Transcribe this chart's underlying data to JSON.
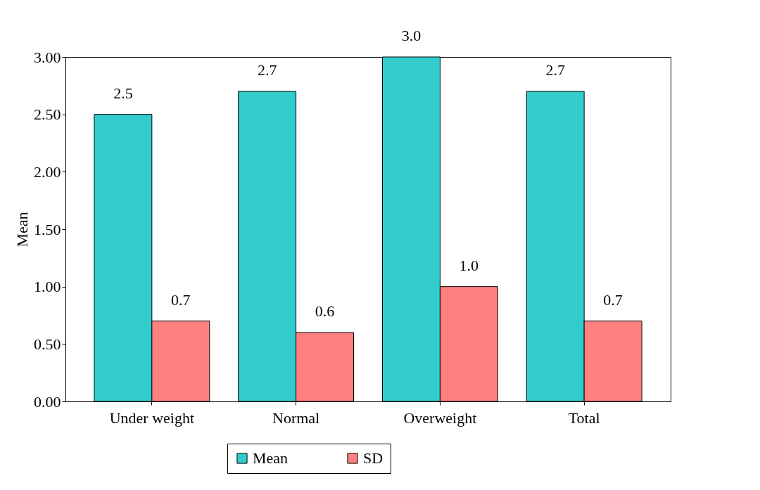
{
  "chart_data": {
    "type": "bar",
    "ylabel": "Mean",
    "categories": [
      "Under weight",
      "Normal",
      "Overweight",
      "Total"
    ],
    "series": [
      {
        "name": "Mean",
        "color": "#33cccc",
        "values": [
          2.5,
          2.7,
          3.0,
          2.7
        ],
        "value_labels": [
          "2.5",
          "2.7",
          "3.0",
          "2.7"
        ]
      },
      {
        "name": "SD",
        "color": "#ff8080",
        "values": [
          0.7,
          0.6,
          1.0,
          0.7
        ],
        "value_labels": [
          "0.7",
          "0.6",
          "1.0",
          "0.7"
        ]
      }
    ],
    "ylim": [
      0,
      3
    ],
    "yticks": [
      {
        "value": 0,
        "label": "0.00"
      },
      {
        "value": 0.5,
        "label": "0.50"
      },
      {
        "value": 1,
        "label": "1.00"
      },
      {
        "value": 1.5,
        "label": "1.50"
      },
      {
        "value": 2,
        "label": "2.00"
      },
      {
        "value": 2.5,
        "label": "2.50"
      },
      {
        "value": 3,
        "label": "3.00"
      }
    ],
    "legend": "bottom",
    "grid": false
  }
}
